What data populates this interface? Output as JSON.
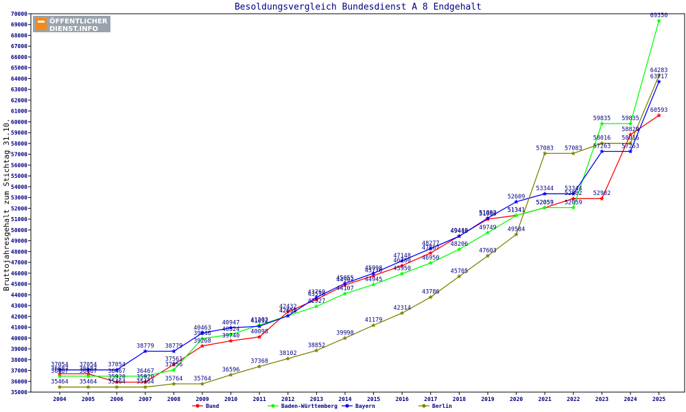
{
  "logo": {
    "line1": "ÖFFENTLICHER",
    "line2": "DIENST.INFO",
    "orange": "#f08a1c",
    "gray": "#9aa3ad"
  },
  "chart_data": {
    "type": "line",
    "title": "Besoldungsvergleich Bundesdienst A 8 Endgehalt",
    "ylabel": "Bruttojahresgehalt zum Stichtag 31.10.",
    "xlabel": "",
    "ylim": [
      35000,
      70000
    ],
    "ytick_step": 1000,
    "grid": false,
    "legend": "bottom",
    "categories": [
      "2004",
      "2005",
      "2006",
      "2007",
      "2008",
      "2009",
      "2010",
      "2011",
      "2012",
      "2013",
      "2014",
      "2015",
      "2016",
      "2017",
      "2018",
      "2019",
      "2020",
      "2021",
      "2022",
      "2023",
      "2024",
      "2025"
    ],
    "series": [
      {
        "name": "Bund",
        "color": "#ff0000",
        "values": [
          36687,
          36687,
          35920,
          35920,
          37561,
          39268,
          39740,
          40098,
          42432,
          43576,
          44902,
          45776,
          46700,
          47867,
          49440,
          51000,
          51341,
          52059,
          52902,
          52902,
          58829,
          60593
        ]
      },
      {
        "name": "Baden-Württemberg",
        "color": "#00ff00",
        "values": [
          36467,
          36467,
          36467,
          36467,
          37056,
          39946,
          40324,
          41202,
          42058,
          42927,
          44107,
          44945,
          45950,
          46950,
          48206,
          49749,
          51341,
          52059,
          52059,
          59835,
          59835,
          69350
        ]
      },
      {
        "name": "Bayern",
        "color": "#0000ff",
        "values": [
          37054,
          37054,
          37054,
          38779,
          38779,
          40463,
          40947,
          41092,
          42058,
          43769,
          45055,
          45998,
          47148,
          48277,
          49418,
          51092,
          52609,
          53344,
          53344,
          57263,
          57263,
          63717
        ]
      },
      {
        "name": "Berlin",
        "color": "#808000",
        "values": [
          35464,
          35464,
          35464,
          35464,
          35764,
          35764,
          36596,
          37368,
          38102,
          38852,
          39998,
          41179,
          42314,
          43786,
          45705,
          47603,
          49584,
          57083,
          57083,
          58016,
          58016,
          64283
        ]
      }
    ]
  }
}
